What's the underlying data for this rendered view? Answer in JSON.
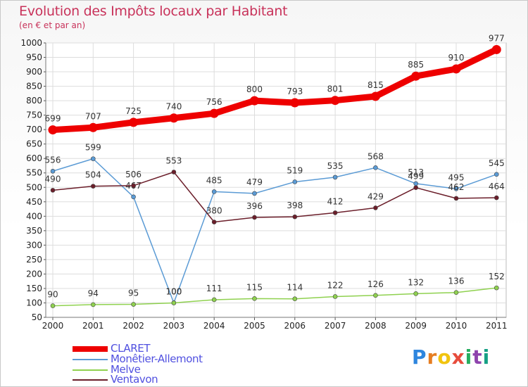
{
  "title": "Evolution des Impôts locaux par Habitant",
  "subtitle": "(en € et par an)",
  "logo": "Proxiti",
  "chart_data": {
    "type": "line",
    "x": [
      "2000",
      "2001",
      "2002",
      "2003",
      "2004",
      "2005",
      "2006",
      "2007",
      "2008",
      "2009",
      "2010",
      "2011"
    ],
    "ylim": [
      50,
      1000
    ],
    "yticks": [
      50,
      100,
      150,
      200,
      250,
      300,
      350,
      400,
      450,
      500,
      550,
      600,
      650,
      700,
      750,
      800,
      850,
      900,
      950,
      1000
    ],
    "grid": true,
    "legend_position": "bottom-left",
    "series": [
      {
        "name": "CLARET",
        "color": "#ee0000",
        "values": [
          699,
          707,
          725,
          740,
          756,
          800,
          793,
          801,
          815,
          885,
          910,
          977
        ]
      },
      {
        "name": "Monêtier-Allemont",
        "color": "#5b9bd5",
        "values": [
          556,
          599,
          467,
          100,
          485,
          479,
          519,
          535,
          568,
          513,
          495,
          545
        ]
      },
      {
        "name": "Melve",
        "color": "#8fd14f",
        "values": [
          90,
          94,
          95,
          100,
          111,
          115,
          114,
          122,
          126,
          132,
          136,
          152
        ]
      },
      {
        "name": "Ventavon",
        "color": "#6b1e2a",
        "values": [
          490,
          504,
          506,
          553,
          380,
          396,
          398,
          412,
          429,
          499,
          462,
          464
        ]
      }
    ],
    "labels": {
      "CLARET": [
        "699",
        "707",
        "725",
        "740",
        "756",
        "800",
        "793",
        "801",
        "815",
        "885",
        "910",
        "977"
      ],
      "Monêtier-Allemont": [
        "556",
        "599",
        "467",
        "100",
        "485",
        "479",
        "519",
        "535",
        "568",
        "513",
        "495",
        "545"
      ],
      "Melve": [
        "90",
        "94",
        "95",
        "100",
        "111",
        "115",
        "114",
        "122",
        "126",
        "132",
        "136",
        "152"
      ],
      "Ventavon": [
        "490",
        "504",
        "506",
        "553",
        "380",
        "396",
        "398",
        "412",
        "429",
        "499",
        "462",
        "464"
      ]
    }
  }
}
